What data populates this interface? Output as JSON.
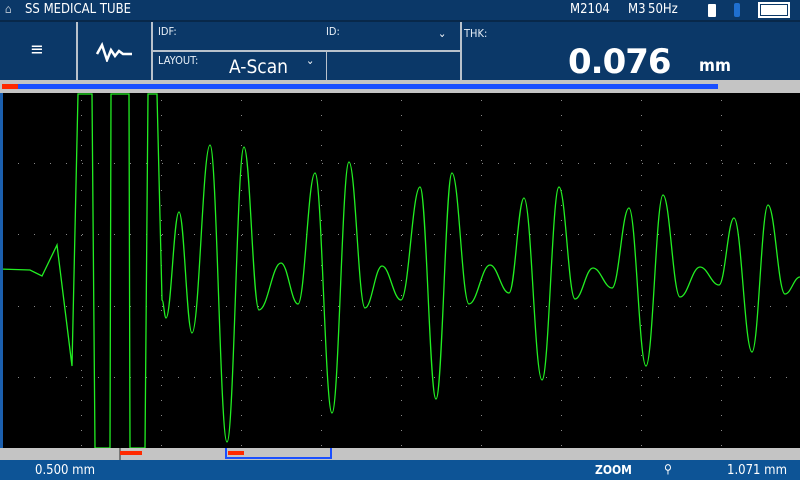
{
  "titlebar": {
    "title": "SS MEDICAL TUBE",
    "model": "M2104",
    "mode": "M3",
    "rate": "50Hz",
    "icons": [
      "home-icon",
      "usb-icon",
      "power-plug-icon",
      "battery-icon"
    ]
  },
  "header": {
    "menu_icon": "hamburger-icon",
    "waveform_icon": "waveform-icon",
    "idf_label": "IDF:",
    "id_label": "ID:",
    "layout_label": "LAYOUT:",
    "layout_value": "A-Scan",
    "thk_label": "THK:",
    "thk_value": "0.076",
    "thk_unit": "mm"
  },
  "footer": {
    "left_value": "0.500 mm",
    "zoom_label": "ZOOM",
    "zoom_icon": "magnifier-icon",
    "right_value": "1.071 mm"
  },
  "colors": {
    "trace": "#22ee22",
    "gate": "#ff2a00",
    "range": "#1a4fff",
    "header": "#0b3868",
    "footer": "#0d5496"
  }
}
